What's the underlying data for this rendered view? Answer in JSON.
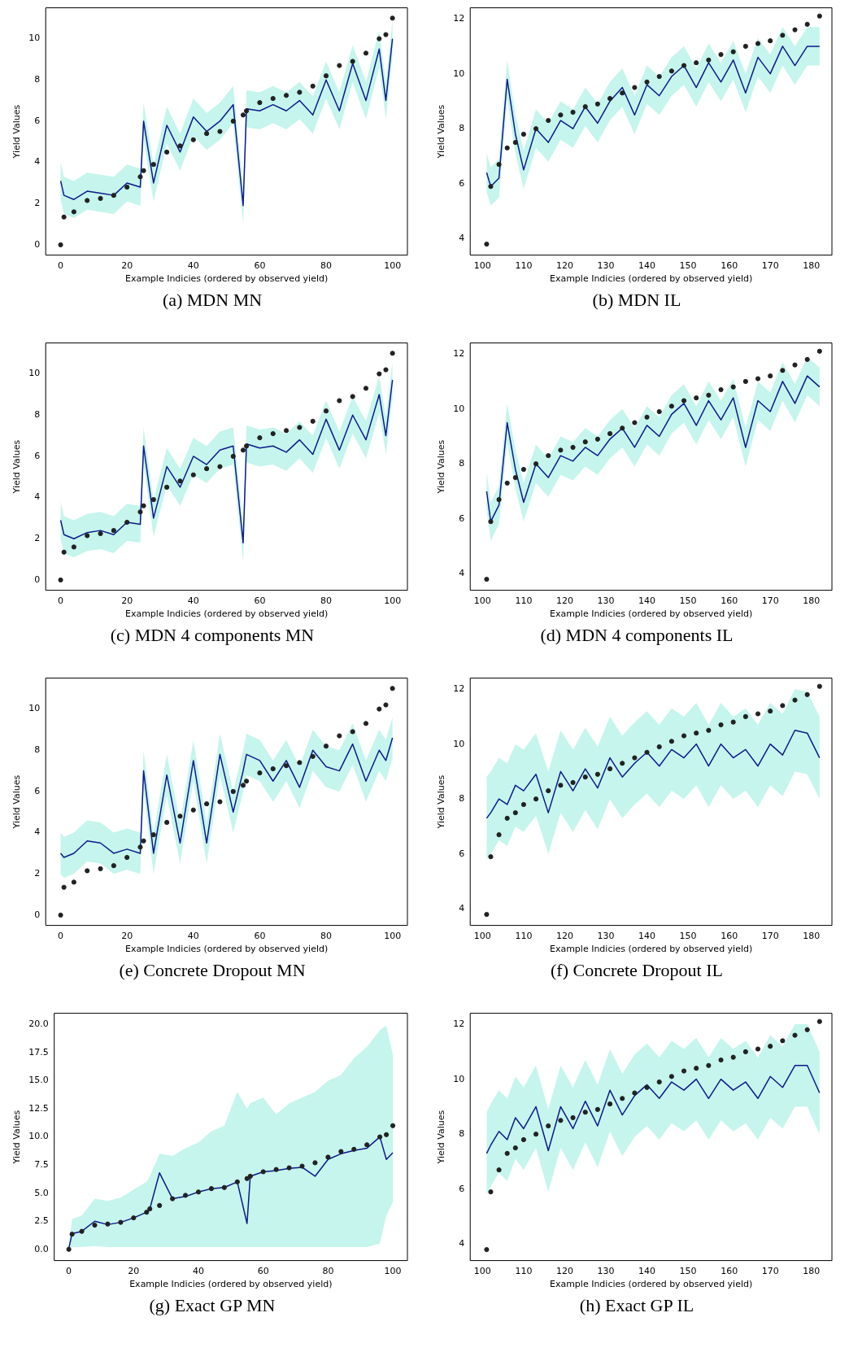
{
  "chart_data": [
    {
      "type": "line",
      "title": "(a) MDN MN",
      "xlabel": "Example Indicies (ordered by observed yield)",
      "ylabel": "Yield Values",
      "xlim": [
        -4.5,
        104.5
      ],
      "xticks": [
        0,
        20,
        40,
        60,
        80,
        100
      ],
      "ylim": [
        -0.5,
        11.5
      ],
      "yticks": [
        0,
        2,
        4,
        6,
        8,
        10
      ],
      "series": [
        {
          "type": "scatter",
          "color": "#222222",
          "x": [
            0,
            1,
            4,
            8,
            12,
            16,
            20,
            24,
            25,
            28,
            32,
            36,
            40,
            44,
            48,
            52,
            55,
            56,
            60,
            64,
            68,
            72,
            76,
            80,
            84,
            88,
            92,
            96,
            98,
            100
          ],
          "values": [
            0,
            1.35,
            1.6,
            2.15,
            2.25,
            2.4,
            2.8,
            3.3,
            3.6,
            3.9,
            4.5,
            4.8,
            5.1,
            5.4,
            5.5,
            6.0,
            6.3,
            6.5,
            6.9,
            7.1,
            7.25,
            7.4,
            7.7,
            8.2,
            8.7,
            8.9,
            9.3,
            10.0,
            10.2,
            11.0
          ]
        },
        {
          "color": "#0d1a8a",
          "x": [
            0,
            1,
            4,
            8,
            12,
            16,
            20,
            24,
            25,
            28,
            32,
            36,
            40,
            44,
            48,
            52,
            55,
            56,
            60,
            64,
            68,
            72,
            76,
            80,
            84,
            88,
            92,
            96,
            98,
            100
          ],
          "values": [
            3.1,
            2.4,
            2.2,
            2.6,
            2.5,
            2.4,
            3.0,
            2.8,
            6.0,
            3.0,
            5.8,
            4.5,
            6.2,
            5.5,
            6.0,
            6.8,
            1.9,
            6.6,
            6.5,
            6.8,
            6.5,
            7.0,
            6.3,
            8.0,
            6.5,
            8.8,
            7.0,
            9.5,
            7.0,
            10.0
          ],
          "lower": [
            2.2,
            1.5,
            1.3,
            1.7,
            1.6,
            1.5,
            2.1,
            1.9,
            5.1,
            2.1,
            4.9,
            3.6,
            5.3,
            4.6,
            5.1,
            5.9,
            1.0,
            5.7,
            5.6,
            5.9,
            5.6,
            6.1,
            5.4,
            7.1,
            5.6,
            7.9,
            6.1,
            8.6,
            6.1,
            9.1
          ],
          "upper": [
            4.0,
            3.3,
            3.1,
            3.5,
            3.4,
            3.3,
            3.9,
            3.7,
            6.9,
            3.9,
            6.7,
            5.4,
            7.1,
            6.4,
            6.9,
            7.7,
            2.8,
            7.5,
            7.4,
            7.7,
            7.4,
            7.9,
            7.2,
            8.9,
            7.4,
            9.7,
            7.9,
            10.4,
            7.9,
            10.9
          ]
        }
      ]
    },
    {
      "type": "line",
      "title": "(b) MDN IL",
      "xlabel": "Example Indicies (ordered by observed yield)",
      "ylabel": "Yield Values",
      "xlim": [
        97,
        185
      ],
      "xticks": [
        100,
        110,
        120,
        130,
        140,
        150,
        160,
        170,
        180
      ],
      "ylim": [
        3.4,
        12.4
      ],
      "yticks": [
        4,
        6,
        8,
        10,
        12
      ],
      "series": [
        {
          "type": "scatter",
          "color": "#222222",
          "x": [
            101,
            102,
            104,
            106,
            108,
            110,
            113,
            116,
            119,
            122,
            125,
            128,
            131,
            134,
            137,
            140,
            143,
            146,
            149,
            152,
            155,
            158,
            161,
            164,
            167,
            170,
            173,
            176,
            179,
            182
          ],
          "values": [
            3.8,
            5.9,
            6.7,
            7.3,
            7.5,
            7.8,
            8.0,
            8.3,
            8.5,
            8.6,
            8.8,
            8.9,
            9.1,
            9.3,
            9.5,
            9.7,
            9.9,
            10.1,
            10.3,
            10.4,
            10.5,
            10.7,
            10.8,
            11.0,
            11.1,
            11.2,
            11.4,
            11.6,
            11.8,
            12.1
          ]
        },
        {
          "color": "#0d1a8a",
          "x": [
            101,
            102,
            104,
            106,
            108,
            110,
            113,
            116,
            119,
            122,
            125,
            128,
            131,
            134,
            137,
            140,
            143,
            146,
            149,
            152,
            155,
            158,
            161,
            164,
            167,
            170,
            173,
            176,
            179,
            182
          ],
          "values": [
            6.4,
            5.9,
            6.2,
            9.8,
            7.8,
            6.5,
            8.0,
            7.5,
            8.3,
            8.0,
            8.8,
            8.2,
            9.0,
            9.5,
            8.5,
            9.6,
            9.2,
            9.9,
            10.3,
            9.5,
            10.4,
            9.7,
            10.5,
            9.3,
            10.6,
            10.0,
            11.0,
            10.3,
            11.0,
            11.0
          ],
          "lower": [
            5.7,
            5.2,
            5.5,
            9.1,
            7.1,
            5.8,
            7.3,
            6.8,
            7.6,
            7.3,
            8.1,
            7.5,
            8.3,
            8.8,
            7.8,
            8.9,
            8.5,
            9.2,
            9.6,
            8.8,
            9.7,
            9.0,
            9.8,
            8.6,
            9.9,
            9.3,
            10.3,
            9.6,
            10.3,
            10.3
          ],
          "upper": [
            7.1,
            6.6,
            6.9,
            10.5,
            8.5,
            7.2,
            8.7,
            8.2,
            9.0,
            8.7,
            9.5,
            8.9,
            9.7,
            10.2,
            9.2,
            10.3,
            9.9,
            10.6,
            11.0,
            10.2,
            11.1,
            10.4,
            11.2,
            10.0,
            11.3,
            10.7,
            11.7,
            11.0,
            11.7,
            11.7
          ]
        }
      ]
    },
    {
      "type": "line",
      "title": "(c) MDN 4 components MN",
      "xlabel": "Example Indicies (ordered by observed yield)",
      "ylabel": "Yield Values",
      "xlim": [
        -4.5,
        104.5
      ],
      "xticks": [
        0,
        20,
        40,
        60,
        80,
        100
      ],
      "ylim": [
        -0.5,
        11.5
      ],
      "yticks": [
        0,
        2,
        4,
        6,
        8,
        10
      ],
      "series": [
        {
          "type": "scatter",
          "color": "#222222",
          "x": [
            0,
            1,
            4,
            8,
            12,
            16,
            20,
            24,
            25,
            28,
            32,
            36,
            40,
            44,
            48,
            52,
            55,
            56,
            60,
            64,
            68,
            72,
            76,
            80,
            84,
            88,
            92,
            96,
            98,
            100
          ],
          "values": [
            0,
            1.35,
            1.6,
            2.15,
            2.25,
            2.4,
            2.8,
            3.3,
            3.6,
            3.9,
            4.5,
            4.8,
            5.1,
            5.4,
            5.5,
            6.0,
            6.3,
            6.5,
            6.9,
            7.1,
            7.25,
            7.4,
            7.7,
            8.2,
            8.7,
            8.9,
            9.3,
            10.0,
            10.2,
            11.0
          ]
        },
        {
          "color": "#0d1a8a",
          "x": [
            0,
            1,
            4,
            8,
            12,
            16,
            20,
            24,
            25,
            28,
            32,
            36,
            40,
            44,
            48,
            52,
            55,
            56,
            60,
            64,
            68,
            72,
            76,
            80,
            84,
            88,
            92,
            96,
            98,
            100
          ],
          "values": [
            2.9,
            2.2,
            2.0,
            2.3,
            2.4,
            2.2,
            2.8,
            2.7,
            6.5,
            3.0,
            5.5,
            4.5,
            6.0,
            5.6,
            6.3,
            6.5,
            1.8,
            6.6,
            6.4,
            6.5,
            6.2,
            6.8,
            6.1,
            7.8,
            6.3,
            8.0,
            6.8,
            9.0,
            7.0,
            9.7
          ],
          "lower": [
            2.0,
            1.3,
            1.1,
            1.4,
            1.5,
            1.3,
            1.9,
            1.8,
            5.6,
            2.1,
            4.6,
            3.6,
            5.1,
            4.7,
            5.4,
            5.6,
            0.9,
            5.7,
            5.5,
            5.6,
            5.3,
            5.9,
            5.2,
            6.9,
            5.4,
            7.1,
            5.9,
            8.1,
            6.1,
            8.8
          ],
          "upper": [
            3.8,
            3.1,
            2.9,
            3.2,
            3.3,
            3.1,
            3.7,
            3.6,
            7.4,
            3.9,
            6.4,
            5.4,
            6.9,
            6.5,
            7.2,
            7.4,
            2.7,
            7.5,
            7.3,
            7.4,
            7.1,
            7.7,
            7.0,
            8.7,
            7.2,
            8.9,
            7.7,
            9.9,
            7.9,
            10.6
          ]
        }
      ]
    },
    {
      "type": "line",
      "title": "(d) MDN 4 components IL",
      "xlabel": "Example Indicies (ordered by observed yield)",
      "ylabel": "Yield Values",
      "xlim": [
        97,
        185
      ],
      "xticks": [
        100,
        110,
        120,
        130,
        140,
        150,
        160,
        170,
        180
      ],
      "ylim": [
        3.4,
        12.4
      ],
      "yticks": [
        4,
        6,
        8,
        10,
        12
      ],
      "series": [
        {
          "type": "scatter",
          "color": "#222222",
          "x": [
            101,
            102,
            104,
            106,
            108,
            110,
            113,
            116,
            119,
            122,
            125,
            128,
            131,
            134,
            137,
            140,
            143,
            146,
            149,
            152,
            155,
            158,
            161,
            164,
            167,
            170,
            173,
            176,
            179,
            182
          ],
          "values": [
            3.8,
            5.9,
            6.7,
            7.3,
            7.5,
            7.8,
            8.0,
            8.3,
            8.5,
            8.6,
            8.8,
            8.9,
            9.1,
            9.3,
            9.5,
            9.7,
            9.9,
            10.1,
            10.3,
            10.4,
            10.5,
            10.7,
            10.8,
            11.0,
            11.1,
            11.2,
            11.4,
            11.6,
            11.8,
            12.1
          ]
        },
        {
          "color": "#0d1a8a",
          "x": [
            101,
            102,
            104,
            106,
            108,
            110,
            113,
            116,
            119,
            122,
            125,
            128,
            131,
            134,
            137,
            140,
            143,
            146,
            149,
            152,
            155,
            158,
            161,
            164,
            167,
            170,
            173,
            176,
            179,
            182
          ],
          "values": [
            7.0,
            5.9,
            6.5,
            9.5,
            7.8,
            6.6,
            8.0,
            7.5,
            8.3,
            8.1,
            8.6,
            8.3,
            8.9,
            9.3,
            8.6,
            9.4,
            9.0,
            9.8,
            10.2,
            9.4,
            10.3,
            9.6,
            10.4,
            8.6,
            10.3,
            9.9,
            11.0,
            10.2,
            11.2,
            10.8
          ],
          "lower": [
            6.3,
            5.2,
            5.8,
            8.8,
            7.1,
            5.9,
            7.3,
            6.8,
            7.6,
            7.4,
            7.9,
            7.6,
            8.2,
            8.6,
            7.9,
            8.7,
            8.3,
            9.1,
            9.5,
            8.7,
            9.6,
            8.9,
            9.7,
            7.9,
            9.6,
            9.2,
            10.3,
            9.5,
            10.5,
            10.1
          ],
          "upper": [
            7.7,
            6.6,
            7.2,
            10.2,
            8.5,
            7.3,
            8.7,
            8.2,
            9.0,
            8.8,
            9.3,
            9.0,
            9.6,
            10.0,
            9.3,
            10.1,
            9.7,
            10.5,
            10.9,
            10.1,
            11.0,
            10.3,
            11.1,
            9.3,
            11.0,
            10.6,
            11.7,
            10.9,
            11.9,
            11.5
          ]
        }
      ]
    },
    {
      "type": "line",
      "title": "(e) Concrete Dropout MN",
      "xlabel": "Example Indicies (ordered by observed yield)",
      "ylabel": "Yield Values",
      "xlim": [
        -4.5,
        104.5
      ],
      "xticks": [
        0,
        20,
        40,
        60,
        80,
        100
      ],
      "ylim": [
        -0.5,
        11.5
      ],
      "yticks": [
        0,
        2,
        4,
        6,
        8,
        10
      ],
      "series": [
        {
          "type": "scatter",
          "color": "#222222",
          "x": [
            0,
            1,
            4,
            8,
            12,
            16,
            20,
            24,
            25,
            28,
            32,
            36,
            40,
            44,
            48,
            52,
            55,
            56,
            60,
            64,
            68,
            72,
            76,
            80,
            84,
            88,
            92,
            96,
            98,
            100
          ],
          "values": [
            0,
            1.35,
            1.6,
            2.15,
            2.25,
            2.4,
            2.8,
            3.3,
            3.6,
            3.9,
            4.5,
            4.8,
            5.1,
            5.4,
            5.5,
            6.0,
            6.3,
            6.5,
            6.9,
            7.1,
            7.25,
            7.4,
            7.7,
            8.2,
            8.7,
            8.9,
            9.3,
            10.0,
            10.2,
            11.0
          ]
        },
        {
          "color": "#0d1a8a",
          "x": [
            0,
            1,
            4,
            8,
            12,
            16,
            20,
            24,
            25,
            28,
            32,
            36,
            40,
            44,
            48,
            52,
            55,
            56,
            60,
            64,
            68,
            72,
            76,
            80,
            84,
            88,
            92,
            96,
            98,
            100
          ],
          "values": [
            3.0,
            2.8,
            3.0,
            3.6,
            3.5,
            3.0,
            3.2,
            3.0,
            7.0,
            3.0,
            6.8,
            3.5,
            7.5,
            3.5,
            7.8,
            5.0,
            7.0,
            7.8,
            7.5,
            6.5,
            7.5,
            6.2,
            8.0,
            7.2,
            7.0,
            8.3,
            6.5,
            8.0,
            7.5,
            8.6
          ],
          "lower": [
            2.0,
            1.8,
            2.0,
            2.6,
            2.5,
            2.0,
            2.2,
            2.0,
            6.0,
            2.0,
            5.8,
            2.5,
            6.5,
            2.5,
            6.8,
            4.0,
            6.0,
            6.8,
            6.5,
            5.5,
            6.5,
            5.2,
            7.0,
            6.2,
            6.0,
            7.3,
            5.5,
            7.0,
            6.5,
            7.6
          ],
          "upper": [
            4.0,
            3.8,
            4.0,
            4.6,
            4.5,
            4.0,
            4.2,
            4.0,
            8.0,
            4.0,
            7.8,
            4.5,
            8.5,
            4.5,
            8.8,
            6.0,
            8.0,
            8.8,
            8.5,
            7.5,
            8.5,
            7.2,
            9.0,
            8.2,
            8.0,
            9.3,
            7.5,
            9.0,
            8.5,
            9.6
          ]
        }
      ]
    },
    {
      "type": "line",
      "title": "(f) Concrete Dropout IL",
      "xlabel": "Example Indicies (ordered by observed yield)",
      "ylabel": "Yield Values",
      "xlim": [
        97,
        185
      ],
      "xticks": [
        100,
        110,
        120,
        130,
        140,
        150,
        160,
        170,
        180
      ],
      "ylim": [
        3.4,
        12.4
      ],
      "yticks": [
        4,
        6,
        8,
        10,
        12
      ],
      "series": [
        {
          "type": "scatter",
          "color": "#222222",
          "x": [
            101,
            102,
            104,
            106,
            108,
            110,
            113,
            116,
            119,
            122,
            125,
            128,
            131,
            134,
            137,
            140,
            143,
            146,
            149,
            152,
            155,
            158,
            161,
            164,
            167,
            170,
            173,
            176,
            179,
            182
          ],
          "values": [
            3.8,
            5.9,
            6.7,
            7.3,
            7.5,
            7.8,
            8.0,
            8.3,
            8.5,
            8.6,
            8.8,
            8.9,
            9.1,
            9.3,
            9.5,
            9.7,
            9.9,
            10.1,
            10.3,
            10.4,
            10.5,
            10.7,
            10.8,
            11.0,
            11.1,
            11.2,
            11.4,
            11.6,
            11.8,
            12.1
          ]
        },
        {
          "color": "#0d1a8a",
          "x": [
            101,
            102,
            104,
            106,
            108,
            110,
            113,
            116,
            119,
            122,
            125,
            128,
            131,
            134,
            137,
            140,
            143,
            146,
            149,
            152,
            155,
            158,
            161,
            164,
            167,
            170,
            173,
            176,
            179,
            182
          ],
          "values": [
            7.3,
            7.5,
            8.0,
            7.8,
            8.5,
            8.3,
            8.9,
            7.5,
            9.0,
            8.3,
            9.1,
            8.4,
            9.5,
            8.8,
            9.3,
            9.7,
            9.2,
            9.8,
            9.5,
            10.0,
            9.2,
            10.0,
            9.5,
            9.8,
            9.2,
            10.0,
            9.6,
            10.5,
            10.4,
            9.5
          ],
          "lower": [
            5.8,
            6.0,
            6.5,
            6.3,
            7.0,
            6.8,
            7.4,
            6.0,
            7.5,
            6.8,
            7.6,
            6.9,
            8.0,
            7.3,
            7.8,
            8.2,
            7.7,
            8.3,
            8.0,
            8.5,
            7.7,
            8.5,
            8.0,
            8.3,
            7.7,
            8.5,
            8.1,
            9.0,
            8.9,
            8.0
          ],
          "upper": [
            8.8,
            9.0,
            9.5,
            9.3,
            10.0,
            9.8,
            10.4,
            9.0,
            10.5,
            9.8,
            10.6,
            9.9,
            11.0,
            10.3,
            10.8,
            11.2,
            10.7,
            11.3,
            11.0,
            11.5,
            10.7,
            11.5,
            11.0,
            11.3,
            10.7,
            11.5,
            11.1,
            12.0,
            11.9,
            11.0
          ]
        }
      ]
    },
    {
      "type": "line",
      "title": "(g) Exact GP MN",
      "xlabel": "Example Indicies (ordered by observed yield)",
      "ylabel": "Yield Values",
      "xlim": [
        -4.5,
        104.5
      ],
      "xticks": [
        0,
        20,
        40,
        60,
        80,
        100
      ],
      "ylim": [
        -1,
        21
      ],
      "yticks": [
        {
          "value": 0,
          "label": "0.0"
        },
        {
          "value": 2.5,
          "label": "2.5"
        },
        {
          "value": 5,
          "label": "5.0"
        },
        {
          "value": 7.5,
          "label": "7.5"
        },
        {
          "value": 10,
          "label": "10.0"
        },
        {
          "value": 12.5,
          "label": "12.5"
        },
        {
          "value": 15,
          "label": "15.0"
        },
        {
          "value": 17.5,
          "label": "17.5"
        },
        {
          "value": 20,
          "label": "20.0"
        }
      ],
      "series": [
        {
          "type": "scatter",
          "color": "#222222",
          "x": [
            0,
            1,
            4,
            8,
            12,
            16,
            20,
            24,
            25,
            28,
            32,
            36,
            40,
            44,
            48,
            52,
            55,
            56,
            60,
            64,
            68,
            72,
            76,
            80,
            84,
            88,
            92,
            96,
            98,
            100
          ],
          "values": [
            0,
            1.35,
            1.6,
            2.15,
            2.25,
            2.4,
            2.8,
            3.3,
            3.6,
            3.9,
            4.5,
            4.8,
            5.1,
            5.4,
            5.5,
            6.0,
            6.3,
            6.5,
            6.9,
            7.1,
            7.25,
            7.4,
            7.7,
            8.2,
            8.7,
            8.9,
            9.3,
            10.0,
            10.2,
            11.0
          ]
        },
        {
          "color": "#0d1a8a",
          "x": [
            0,
            1,
            4,
            8,
            12,
            16,
            20,
            24,
            25,
            28,
            32,
            36,
            40,
            44,
            48,
            52,
            55,
            56,
            60,
            64,
            68,
            72,
            76,
            80,
            84,
            88,
            92,
            96,
            98,
            100
          ],
          "values": [
            0.1,
            1.4,
            1.6,
            2.5,
            2.2,
            2.4,
            2.8,
            3.3,
            3.6,
            6.8,
            4.5,
            4.7,
            5.1,
            5.4,
            5.5,
            6.0,
            2.3,
            6.5,
            6.9,
            7.0,
            7.2,
            7.3,
            6.5,
            8.0,
            8.5,
            8.8,
            9.0,
            10.0,
            8.0,
            8.6
          ],
          "lower": [
            0,
            0.2,
            0.2,
            0.3,
            0.2,
            0.2,
            0.2,
            0.2,
            0.2,
            0.2,
            0.2,
            0.2,
            0.2,
            0.2,
            0.2,
            0.2,
            0.2,
            0.2,
            0.2,
            0.2,
            0.2,
            0.2,
            0.2,
            0.2,
            0.2,
            0.2,
            0.2,
            0.5,
            3.0,
            4.2
          ],
          "upper": [
            0.3,
            2.7,
            3.0,
            4.5,
            4.3,
            4.6,
            5.3,
            6.0,
            6.5,
            8.5,
            8.3,
            9.0,
            9.5,
            10.5,
            11.0,
            14.0,
            12.5,
            13.0,
            13.5,
            12.0,
            13.0,
            13.5,
            14.0,
            15.0,
            15.5,
            17.0,
            18.0,
            19.5,
            19.9,
            17.3
          ]
        }
      ]
    },
    {
      "type": "line",
      "title": "(h) Exact GP IL",
      "xlabel": "Example Indicies (ordered by observed yield)",
      "ylabel": "Yield Values",
      "xlim": [
        97,
        185
      ],
      "xticks": [
        100,
        110,
        120,
        130,
        140,
        150,
        160,
        170,
        180
      ],
      "ylim": [
        3.4,
        12.4
      ],
      "yticks": [
        4,
        6,
        8,
        10,
        12
      ],
      "series": [
        {
          "type": "scatter",
          "color": "#222222",
          "x": [
            101,
            102,
            104,
            106,
            108,
            110,
            113,
            116,
            119,
            122,
            125,
            128,
            131,
            134,
            137,
            140,
            143,
            146,
            149,
            152,
            155,
            158,
            161,
            164,
            167,
            170,
            173,
            176,
            179,
            182
          ],
          "values": [
            3.8,
            5.9,
            6.7,
            7.3,
            7.5,
            7.8,
            8.0,
            8.3,
            8.5,
            8.6,
            8.8,
            8.9,
            9.1,
            9.3,
            9.5,
            9.7,
            9.9,
            10.1,
            10.3,
            10.4,
            10.5,
            10.7,
            10.8,
            11.0,
            11.1,
            11.2,
            11.4,
            11.6,
            11.8,
            12.1
          ]
        },
        {
          "color": "#0d1a8a",
          "x": [
            101,
            102,
            104,
            106,
            108,
            110,
            113,
            116,
            119,
            122,
            125,
            128,
            131,
            134,
            137,
            140,
            143,
            146,
            149,
            152,
            155,
            158,
            161,
            164,
            167,
            170,
            173,
            176,
            179,
            182
          ],
          "values": [
            7.3,
            7.6,
            8.1,
            7.8,
            8.6,
            8.2,
            9.0,
            7.4,
            9.0,
            8.2,
            9.2,
            8.3,
            9.6,
            8.7,
            9.4,
            9.8,
            9.3,
            9.9,
            9.6,
            10.0,
            9.3,
            10.0,
            9.6,
            9.9,
            9.3,
            10.1,
            9.7,
            10.5,
            10.5,
            9.5
          ],
          "lower": [
            5.8,
            6.1,
            6.6,
            6.3,
            7.1,
            6.7,
            7.5,
            5.9,
            7.5,
            6.7,
            7.7,
            6.8,
            8.1,
            7.2,
            7.9,
            8.3,
            7.8,
            8.4,
            8.1,
            8.5,
            7.8,
            8.5,
            8.1,
            8.4,
            7.8,
            8.6,
            8.2,
            9.0,
            9.0,
            8.0
          ],
          "upper": [
            8.8,
            9.1,
            9.6,
            9.3,
            10.1,
            9.7,
            10.5,
            8.9,
            10.5,
            9.7,
            10.7,
            9.8,
            11.1,
            10.2,
            10.9,
            11.3,
            10.8,
            11.4,
            11.1,
            11.5,
            10.8,
            11.5,
            11.1,
            11.4,
            10.8,
            11.6,
            11.2,
            12.0,
            12.0,
            11.0
          ]
        }
      ]
    }
  ]
}
